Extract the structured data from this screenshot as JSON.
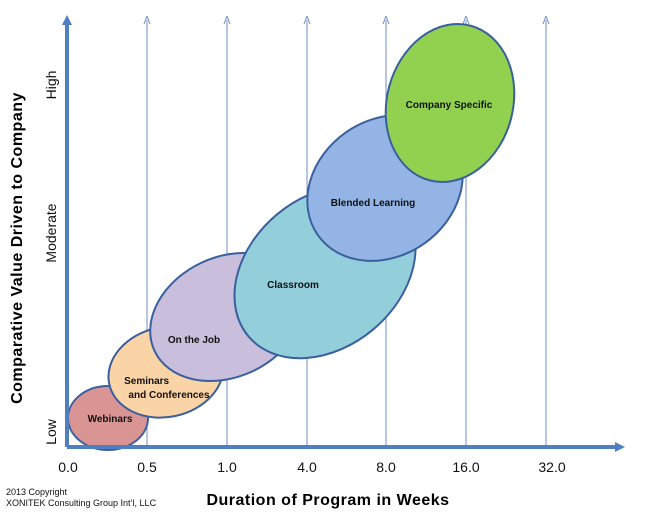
{
  "diagram": {
    "y_axis_title": "Comparative Value Driven to Company",
    "x_axis_title": "Duration of Program in Weeks",
    "y_levels": [
      "Low",
      "Moderate",
      "High"
    ],
    "x_ticks": [
      "0.0",
      "0.5",
      "1.0",
      "4.0",
      "8.0",
      "16.0",
      "32.0"
    ],
    "programs": [
      {
        "name": "Webinars",
        "label_lines": [
          "Webinars"
        ],
        "color": "#d99494"
      },
      {
        "name": "Seminars and Conferences",
        "label_lines": [
          "Seminars",
          "and Conferences"
        ],
        "color": "#fad4a6"
      },
      {
        "name": "On the Job",
        "label_lines": [
          "On the Job"
        ],
        "color": "#c9bedb"
      },
      {
        "name": "Classroom",
        "label_lines": [
          "Classroom"
        ],
        "color": "#93cfdb"
      },
      {
        "name": "Blended Learning",
        "label_lines": [
          "Blended Learning"
        ],
        "color": "#93b4e4"
      },
      {
        "name": "Company Specific",
        "label_lines": [
          "Company Specific"
        ],
        "color": "#92d050"
      }
    ],
    "colors": {
      "axis": "#4f7fc0",
      "gridline": "#6f8fc6",
      "ellipse_stroke": "#3a5f9e"
    }
  },
  "copyright": {
    "line1": "2013 Copyright",
    "line2": "XONITEK Consulting Group Int’l, LLC"
  }
}
